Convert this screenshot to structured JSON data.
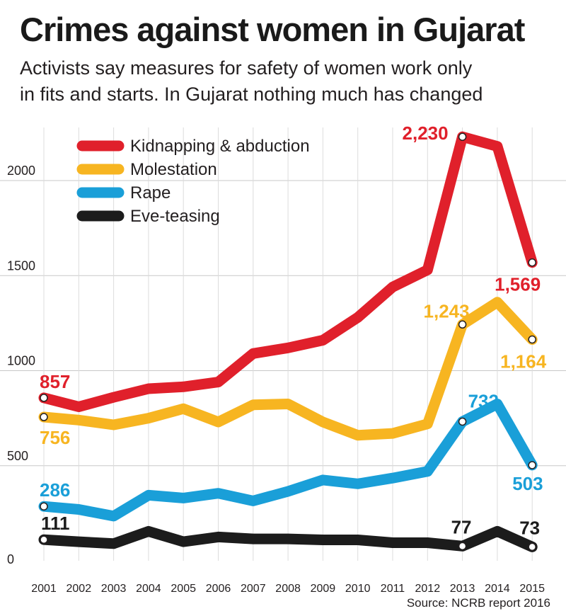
{
  "chart_data": {
    "type": "line",
    "title": "Crimes against women in Gujarat",
    "subtitle_lines": [
      "Activists say measures for safety of women work only",
      "in fits and starts. In Gujarat nothing much has changed"
    ],
    "source": "Source: NCRB report 2016",
    "x": [
      2001,
      2002,
      2003,
      2004,
      2005,
      2006,
      2007,
      2008,
      2009,
      2010,
      2011,
      2012,
      2013,
      2014,
      2015
    ],
    "ylim": [
      0,
      2300
    ],
    "yticks": [
      0,
      500,
      1000,
      1500,
      2000
    ],
    "grid": true,
    "legend_position": "top-left",
    "series": [
      {
        "name": "Kidnapping & abduction",
        "color": "#e0202b",
        "values": [
          857,
          810,
          860,
          905,
          915,
          940,
          1090,
          1120,
          1160,
          1280,
          1440,
          1530,
          2230,
          2180,
          1569
        ],
        "labels": [
          {
            "index": 0,
            "text": "857"
          },
          {
            "index": 12,
            "text": "2,230"
          },
          {
            "index": 14,
            "text": "1,569"
          }
        ]
      },
      {
        "name": "Molestation",
        "color": "#f7b521",
        "values": [
          756,
          740,
          715,
          750,
          800,
          730,
          820,
          825,
          730,
          660,
          670,
          720,
          1243,
          1360,
          1164
        ],
        "labels": [
          {
            "index": 0,
            "text": "756"
          },
          {
            "index": 12,
            "text": "1,243"
          },
          {
            "index": 14,
            "text": "1,164"
          }
        ]
      },
      {
        "name": "Rape",
        "color": "#1a9fd8",
        "values": [
          286,
          270,
          235,
          345,
          330,
          355,
          315,
          365,
          425,
          405,
          435,
          470,
          732,
          825,
          503
        ],
        "labels": [
          {
            "index": 0,
            "text": "286"
          },
          {
            "index": 12,
            "text": "732"
          },
          {
            "index": 14,
            "text": "503"
          }
        ]
      },
      {
        "name": "Eve-teasing",
        "color": "#1c1c1c",
        "values": [
          111,
          100,
          90,
          155,
          100,
          125,
          115,
          115,
          110,
          110,
          95,
          95,
          77,
          155,
          73
        ],
        "labels": [
          {
            "index": 0,
            "text": "111"
          },
          {
            "index": 12,
            "text": "77"
          },
          {
            "index": 14,
            "text": "73"
          }
        ]
      }
    ]
  }
}
